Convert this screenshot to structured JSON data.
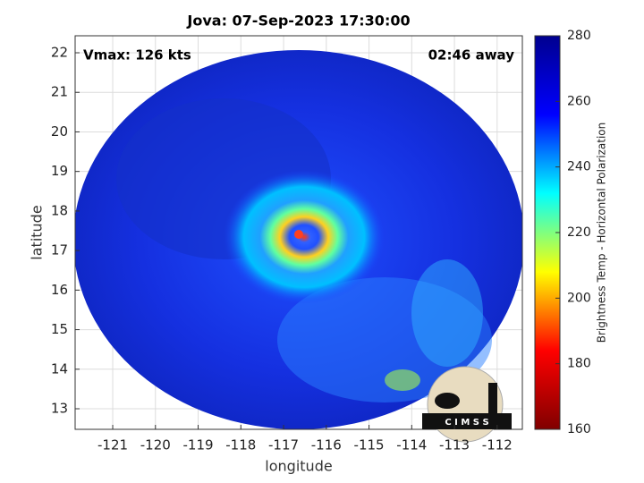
{
  "chart_data": {
    "type": "image",
    "title": "Jova: 07-Sep-2023 17:30:00",
    "xlabel": "longitude",
    "ylabel": "latitude",
    "annotations": [
      "Vmax: 126 kts",
      "02:46 away"
    ],
    "logo_text": "C I M S S",
    "xlim": [
      -121.88,
      -111.41
    ],
    "ylim": [
      12.48,
      22.43
    ],
    "xticks": [
      -121,
      -120,
      -119,
      -118,
      -117,
      -116,
      -115,
      -114,
      -113,
      -112
    ],
    "yticks": [
      13,
      14,
      15,
      16,
      17,
      18,
      19,
      20,
      21,
      22
    ],
    "grid": true,
    "colorbar": {
      "label": "Brightness Temp - Horizontal Polarization",
      "clim": [
        160,
        280
      ],
      "ticks": [
        160,
        180,
        200,
        220,
        240,
        260,
        280
      ],
      "colormap": [
        "#800000",
        "#ff0000",
        "#ffff00",
        "#00ffff",
        "#0000ff",
        "#00008f"
      ]
    }
  }
}
